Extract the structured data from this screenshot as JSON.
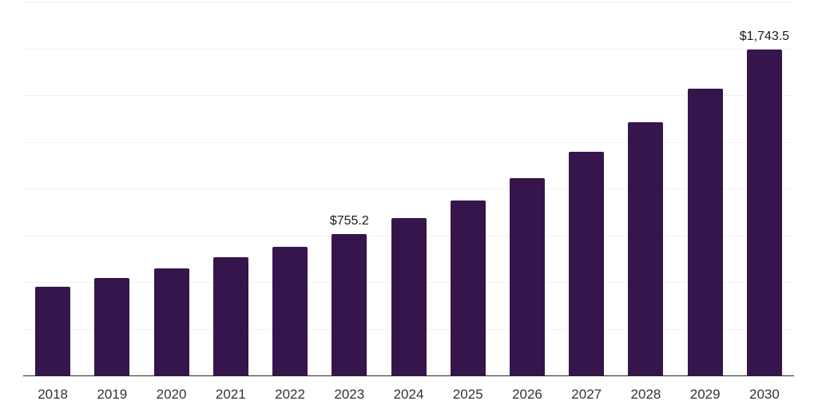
{
  "chart_data": {
    "type": "bar",
    "title": "",
    "xlabel": "",
    "ylabel": "",
    "categories": [
      "2018",
      "2019",
      "2020",
      "2021",
      "2022",
      "2023",
      "2024",
      "2025",
      "2026",
      "2027",
      "2028",
      "2029",
      "2030"
    ],
    "values": [
      474,
      521,
      573,
      633,
      686,
      755.2,
      842,
      936,
      1056,
      1195,
      1353,
      1534,
      1743.5
    ],
    "labeled_points": {
      "2023": "$755.2",
      "2030": "$1,743.5"
    },
    "ylim": [
      0,
      2000
    ],
    "gridline_step": 250,
    "grid": "horizontal",
    "legend_position": "none"
  },
  "styles": {
    "bar_color": "#35154B",
    "gridline_color": "#f2f2f2",
    "axis_line_color": "#262626",
    "tick_label_color": "#333333",
    "data_label_color": "#1a1a1a",
    "background": "#ffffff"
  }
}
